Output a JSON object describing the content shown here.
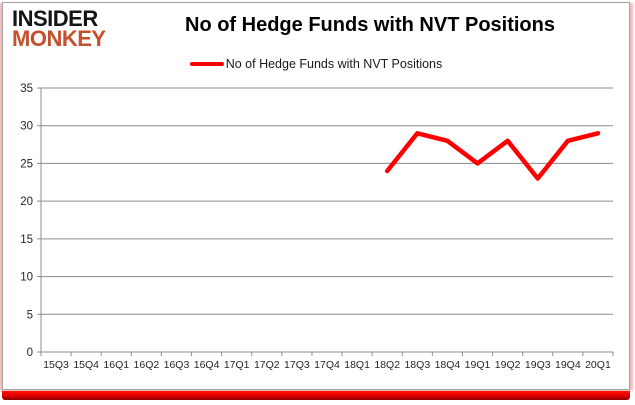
{
  "logo": {
    "line1": "INSIDER",
    "line2": "MONKEY"
  },
  "header": {
    "title": "No of Hedge Funds with NVT Positions"
  },
  "legend": {
    "label": "No of Hedge Funds with NVT Positions"
  },
  "colors": {
    "series": "#ff0000",
    "gridline": "#8c8c8c",
    "axis": "#8c8c8c",
    "tick_label": "#262626",
    "logo_red": "#c4502e",
    "bottom_bar": "#cc0000"
  },
  "chart_data": {
    "type": "line",
    "title": "No of Hedge Funds with NVT Positions",
    "categories": [
      "15Q3",
      "15Q4",
      "16Q1",
      "16Q2",
      "16Q3",
      "16Q4",
      "17Q1",
      "17Q2",
      "17Q3",
      "17Q4",
      "18Q1",
      "18Q2",
      "18Q3",
      "18Q4",
      "19Q1",
      "19Q2",
      "19Q3",
      "19Q4",
      "20Q1"
    ],
    "series": [
      {
        "name": "No of Hedge Funds with NVT Positions",
        "color": "#ff0000",
        "values": [
          null,
          null,
          null,
          null,
          null,
          null,
          null,
          null,
          null,
          null,
          null,
          24,
          29,
          28,
          25,
          28,
          23,
          28,
          29
        ]
      }
    ],
    "ylim": [
      0,
      35
    ],
    "yticks": [
      0,
      5,
      10,
      15,
      20,
      25,
      30,
      35
    ],
    "grid": true,
    "legend_position": "top"
  }
}
